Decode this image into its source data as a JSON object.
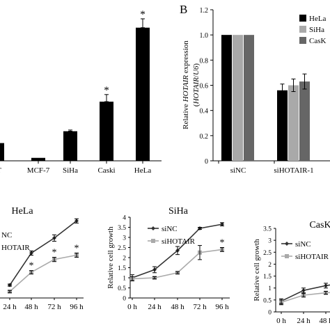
{
  "chart_data": [
    {
      "id": "A",
      "type": "bar",
      "panel_label": "",
      "title": "",
      "xlabel": "",
      "ylabel": "",
      "categories": [
        "HaCaT",
        "MCF-7",
        "SiHa",
        "Caski",
        "HeLa"
      ],
      "category_labels": [
        "aT",
        "MCF-7",
        "SiHa",
        "Caski",
        "HeLa"
      ],
      "values": [
        0.3,
        0.05,
        0.5,
        1.0,
        2.25
      ],
      "errors": [
        0.0,
        0.0,
        0.02,
        0.12,
        0.15
      ],
      "significance": [
        "",
        "",
        "",
        "*",
        "*"
      ],
      "ylim": [
        0,
        2.6
      ],
      "color": "#000000"
    },
    {
      "id": "B",
      "type": "bar",
      "panel_label": "B",
      "title": "",
      "ylabel_parts": [
        "Relative ",
        "HOTAIR",
        " expression"
      ],
      "ylabel2_parts": [
        "(",
        "HOTAIR",
        "/",
        "U6",
        ")"
      ],
      "categories": [
        "siNC",
        "siHOTAIR-1"
      ],
      "y_ticks": [
        "0",
        "0.2",
        "0.4",
        "0.6",
        "0.8",
        "1.0",
        "1.2"
      ],
      "ylim": [
        0,
        1.2
      ],
      "series": [
        {
          "name": "HeLa",
          "color": "#000000",
          "values": [
            1.0,
            0.56
          ],
          "errors": [
            0.0,
            0.05
          ]
        },
        {
          "name": "SiHa",
          "color": "#a9a9a9",
          "values": [
            1.0,
            0.6
          ],
          "errors": [
            0.0,
            0.05
          ]
        },
        {
          "name": "CasK",
          "color": "#666666",
          "values": [
            1.0,
            0.63
          ],
          "errors": [
            0.0,
            0.06
          ]
        }
      ],
      "legend_position": "top-right"
    },
    {
      "id": "C1",
      "type": "line",
      "title": "HeLa",
      "xlabel": "",
      "ylabel": "",
      "x": [
        "24 h",
        "48 h",
        "72 h",
        "96 h"
      ],
      "x_labels": [
        "24 h",
        "48 h",
        "72 h",
        "96 h"
      ],
      "ylim": [
        0,
        4
      ],
      "series": [
        {
          "name": "NC",
          "color": "#333333",
          "values": [
            0.6,
            2.1,
            2.8,
            3.6
          ],
          "errors": [
            0.05,
            0.1,
            0.15,
            0.1
          ]
        },
        {
          "name": "HOTAIR",
          "color": "#aaaaaa",
          "values": [
            0.3,
            1.2,
            1.8,
            2.0
          ],
          "errors": [
            0.05,
            0.08,
            0.1,
            0.1
          ]
        }
      ],
      "significance": [
        "",
        "*",
        "*",
        "*"
      ]
    },
    {
      "id": "C2",
      "type": "line",
      "title": "SiHa",
      "xlabel": "",
      "ylabel": "Relative cell growth",
      "x": [
        "0 h",
        "24 h",
        "48 h",
        "72 h",
        "96 h"
      ],
      "x_labels": [
        "0 h",
        "24 h",
        "48 h",
        "72 h",
        "96 h"
      ],
      "y_ticks": [
        "0",
        "0.5",
        "1",
        "1.5",
        "2",
        "2.5",
        "3",
        "3.5",
        "4"
      ],
      "ylim": [
        0,
        4
      ],
      "series": [
        {
          "name": "siNC",
          "color": "#333333",
          "values": [
            1.0,
            1.4,
            2.35,
            3.45,
            3.65
          ],
          "errors": [
            0.15,
            0.15,
            0.2,
            0.05,
            0.08
          ]
        },
        {
          "name": "siHOTAIR",
          "color": "#aaaaaa",
          "values": [
            0.95,
            1.0,
            1.25,
            2.25,
            2.4
          ],
          "errors": [
            0.1,
            0.05,
            0.05,
            0.35,
            0.1
          ]
        }
      ],
      "significance": [
        "",
        "",
        "",
        "",
        "*"
      ],
      "legend_position": "top-left"
    },
    {
      "id": "C3",
      "type": "line",
      "title": "CasK",
      "xlabel": "",
      "ylabel": "Relative cell growth",
      "x": [
        "0 h",
        "24 h",
        "48 h",
        "72 h"
      ],
      "x_labels": [
        "0 h",
        "24 h",
        "48 h",
        "72 h"
      ],
      "y_ticks": [
        "0",
        "0.5",
        "1",
        "1.5",
        "2",
        "2.5",
        "3",
        "3.5"
      ],
      "ylim": [
        0,
        3.5
      ],
      "series": [
        {
          "name": "siNC",
          "color": "#333333",
          "values": [
            0.45,
            0.9,
            1.1,
            1.25
          ],
          "errors": [
            0.1,
            0.1,
            0.1,
            0.1
          ]
        },
        {
          "name": "siHOTAIR",
          "color": "#aaaaaa",
          "values": [
            0.4,
            0.7,
            0.8,
            0.85
          ],
          "errors": [
            0.1,
            0.08,
            0.06,
            0.06
          ]
        }
      ],
      "legend_position": "top-left"
    }
  ]
}
